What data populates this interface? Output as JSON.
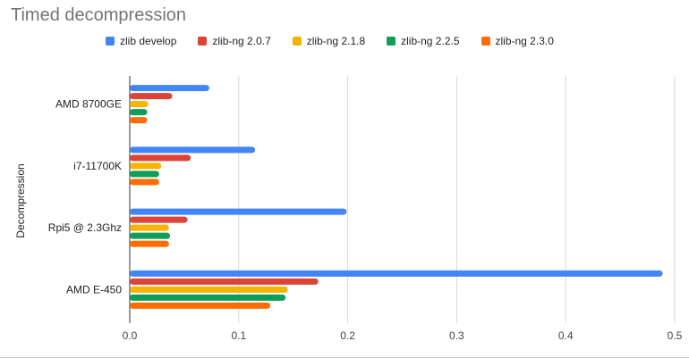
{
  "chart_data": {
    "type": "bar",
    "orientation": "horizontal",
    "title": "Timed decompression",
    "ylabel": "Decompression",
    "xlabel": "",
    "categories": [
      "AMD 8700GE",
      "i7-11700K",
      "Rpi5 @ 2.3Ghz",
      "AMD E-450"
    ],
    "xlim": [
      0,
      0.5
    ],
    "xticks": [
      "0.0",
      "0.1",
      "0.2",
      "0.3",
      "0.4",
      "0.5"
    ],
    "grid": true,
    "legend_position": "top",
    "series": [
      {
        "name": "zlib develop",
        "color": "#4285f4",
        "values": [
          0.073,
          0.115,
          0.199,
          0.489
        ]
      },
      {
        "name": "zlib-ng 2.0.7",
        "color": "#db4437",
        "values": [
          0.039,
          0.056,
          0.053,
          0.173
        ]
      },
      {
        "name": "zlib-ng 2.1.8",
        "color": "#f4b400",
        "values": [
          0.017,
          0.029,
          0.036,
          0.145
        ]
      },
      {
        "name": "zlib-ng 2.2.5",
        "color": "#0f9d58",
        "values": [
          0.016,
          0.027,
          0.037,
          0.143
        ]
      },
      {
        "name": "zlib-ng 2.3.0",
        "color": "#ff6d01",
        "values": [
          0.016,
          0.027,
          0.036,
          0.129
        ]
      }
    ]
  }
}
